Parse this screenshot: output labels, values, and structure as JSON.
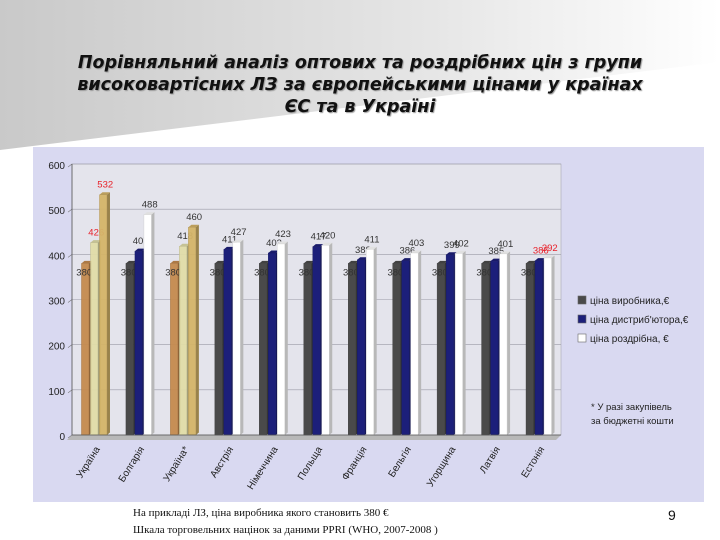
{
  "slide": {
    "title_lines": [
      "Порівняльний аналіз оптових та роздрібних цін з групи",
      "високовартісних ЛЗ за європейськими цінами у країнах",
      "ЄС та в Україні"
    ],
    "footnote_lines": [
      "На прикладі ЛЗ, ціна виробника якого становить 380 €",
      "Шкала торговельних націнок за даними PPRI (WHO, 2007-2008 )"
    ],
    "page_number": "9"
  },
  "chart_data": {
    "type": "bar",
    "categories": [
      "Україна",
      "Болгарія",
      "Україна*",
      "Австрія",
      "Німеччина",
      "Польща",
      "Франція",
      "Бельгія",
      "Угорщина",
      "Латвія",
      "Естонія"
    ],
    "series": [
      {
        "name": "ціна виробника,€",
        "values": [
          380,
          380,
          380,
          380,
          380,
          380,
          380,
          380,
          380,
          380,
          380
        ],
        "labels": [
          "380",
          "380",
          "380",
          "380",
          "380",
          "380",
          "380",
          "380",
          "380",
          "380",
          "380"
        ],
        "color": "#4a4a4a",
        "ukraine_color": "#c48a4e"
      },
      {
        "name": "ціна дистриб'ютора,€",
        "values": [
          426,
          407,
          418,
          411,
          403,
          417,
          388,
          386,
          399,
          385,
          386
        ],
        "labels": [
          "426",
          "407",
          "418",
          "411",
          "403",
          "417",
          "388",
          "386",
          "399",
          "385",
          "386"
        ],
        "color": "#1c1f7a",
        "ukraine_color": "#e0dca8"
      },
      {
        "name": "ціна роздрібна, €",
        "values": [
          532,
          488,
          460,
          427,
          423,
          420,
          411,
          403,
          402,
          401,
          392
        ],
        "labels": [
          "532",
          "488",
          "460",
          "427",
          "423",
          "420",
          "411",
          "403",
          "402",
          "401",
          "392"
        ],
        "color": "#ffffff",
        "ukraine_color": "#d4b468"
      }
    ],
    "highlight_categories": [
      "Україна",
      "Україна*"
    ],
    "red_labels": [
      "426",
      "532",
      "386",
      "392"
    ],
    "ylim": [
      0,
      600
    ],
    "yticks": [
      "0",
      "100",
      "200",
      "300",
      "400",
      "500",
      "600"
    ],
    "grid": true,
    "legend_position": "right",
    "annotation_lines": [
      "* У разі закупівель",
      "за бюджетні кошти"
    ]
  }
}
